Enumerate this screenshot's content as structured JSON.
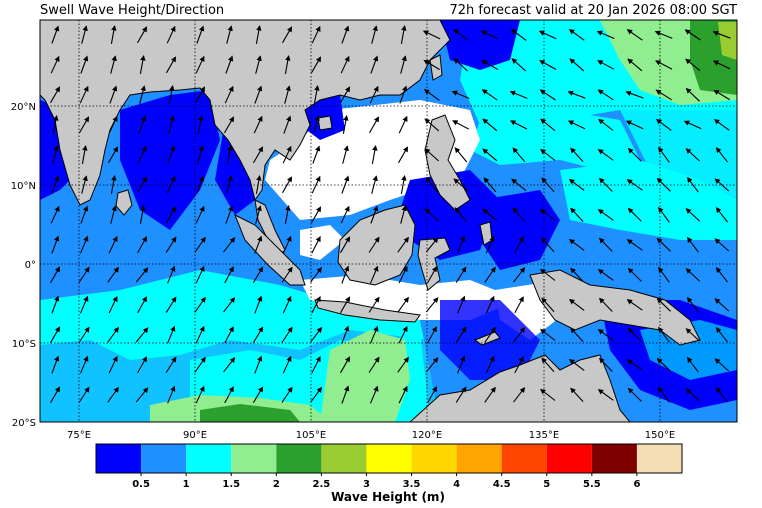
{
  "title": "Swell Wave Height/Direction",
  "forecast": "72h forecast valid at 20 Jan 2026 08:00 SGT",
  "lat_labels": [
    "20°N",
    "10°N",
    "0°",
    "10°S",
    "20°S"
  ],
  "lon_labels": [
    "75°E",
    "90°E",
    "105°E",
    "120°E",
    "135°E",
    "150°E"
  ],
  "colorbar": {
    "title": "Wave Height (m)",
    "ticks": [
      "0.5",
      "1",
      "1.5",
      "2",
      "2.5",
      "3",
      "3.5",
      "4",
      "4.5",
      "5",
      "5.5",
      "6"
    ],
    "colors": [
      "#0000ff",
      "#1e90ff",
      "#00ffff",
      "#90ee90",
      "#2ca02c",
      "#9acd32",
      "#ffff00",
      "#ffd700",
      "#ffa500",
      "#ff4500",
      "#ff0000",
      "#800000",
      "#f5deb3"
    ]
  },
  "colors": {
    "land": "#c8c8c8",
    "calm_sea": "#ffffff"
  }
}
